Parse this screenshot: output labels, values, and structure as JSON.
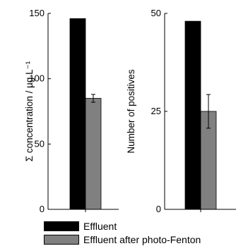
{
  "legend": [
    {
      "label": "Effluent",
      "color": "#000000"
    },
    {
      "label": "Effluent after photo-Fenton",
      "color": "#808080"
    }
  ],
  "chart_data": [
    {
      "type": "bar",
      "ylabel": "Σ concentration / µg L⁻¹",
      "ylim": [
        0,
        150
      ],
      "yticks": [
        "0",
        "50",
        "100",
        "150"
      ],
      "series": [
        {
          "name": "Effluent",
          "values": [
            146
          ],
          "color": "#000000"
        },
        {
          "name": "Effluent after photo-Fenton",
          "values": [
            85
          ],
          "error": [
            3
          ],
          "color": "#808080"
        }
      ]
    },
    {
      "type": "bar",
      "ylabel": "Number of positives",
      "ylim": [
        0,
        50
      ],
      "yticks": [
        "0",
        "25",
        "50"
      ],
      "series": [
        {
          "name": "Effluent",
          "values": [
            48
          ],
          "color": "#000000"
        },
        {
          "name": "Effluent after photo-Fenton",
          "values": [
            25
          ],
          "error": [
            4.3
          ],
          "color": "#808080"
        }
      ]
    }
  ]
}
